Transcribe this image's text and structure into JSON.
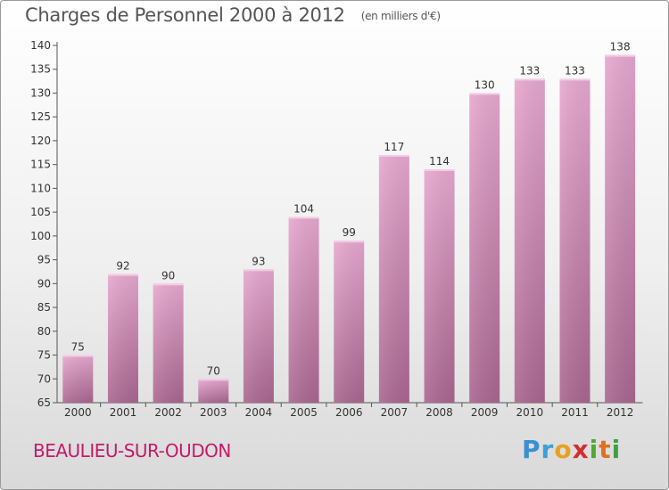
{
  "chart_data": {
    "type": "bar",
    "title": "Charges de Personnel 2000 à 2012",
    "subtitle": "(en milliers d'€)",
    "categories": [
      "2000",
      "2001",
      "2002",
      "2003",
      "2004",
      "2005",
      "2006",
      "2007",
      "2008",
      "2009",
      "2010",
      "2011",
      "2012"
    ],
    "values": [
      75,
      92,
      90,
      70,
      93,
      104,
      99,
      117,
      114,
      130,
      133,
      133,
      138
    ],
    "ylim": [
      65,
      140
    ],
    "yticks": [
      65,
      70,
      75,
      80,
      85,
      90,
      95,
      100,
      105,
      110,
      115,
      120,
      125,
      130,
      135,
      140
    ],
    "grid": false,
    "bar_color": "#c97ba9",
    "xlabel": "",
    "ylabel": ""
  },
  "footer": {
    "commune": "BEAULIEU-SUR-OUDON",
    "logo": "Proxiti"
  },
  "colors": {
    "commune_text": "#c41a6b",
    "bar_light": "#e6a8cf",
    "bar_dark": "#a9668f"
  }
}
